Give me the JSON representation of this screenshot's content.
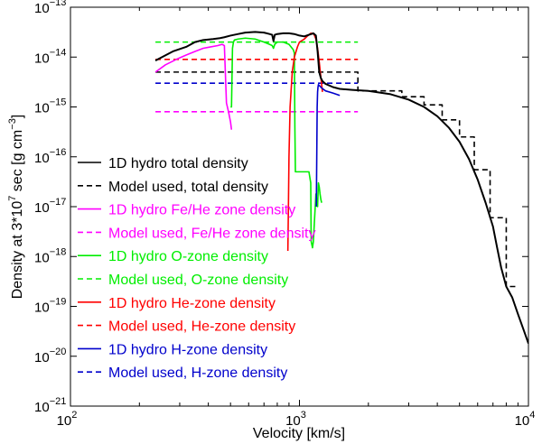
{
  "chart_data": {
    "type": "line",
    "xlabel": "Velocity [km/s]",
    "ylabel_parts": [
      "Density at 3*10",
      "7",
      " sec [g cm",
      "−3",
      "]"
    ],
    "xscale": "log",
    "yscale": "log",
    "xlim": [
      100,
      10000
    ],
    "ylim": [
      1e-21,
      1e-13
    ],
    "x_ticks": [
      {
        "value": 100,
        "base": "10",
        "exp": "2"
      },
      {
        "value": 1000,
        "base": "10",
        "exp": "3"
      },
      {
        "value": 10000,
        "base": "10",
        "exp": "4"
      }
    ],
    "y_ticks": [
      {
        "value": 1e-13,
        "base": "10",
        "exp": "−13"
      },
      {
        "value": 1e-14,
        "base": "10",
        "exp": "−14"
      },
      {
        "value": 1e-15,
        "base": "10",
        "exp": "−15"
      },
      {
        "value": 1e-16,
        "base": "10",
        "exp": "−16"
      },
      {
        "value": 1e-17,
        "base": "10",
        "exp": "−17"
      },
      {
        "value": 1e-18,
        "base": "10",
        "exp": "−18"
      },
      {
        "value": 1e-19,
        "base": "10",
        "exp": "−19"
      },
      {
        "value": 1e-20,
        "base": "10",
        "exp": "−20"
      },
      {
        "value": 1e-21,
        "base": "10",
        "exp": "−21"
      }
    ],
    "legend_position": "left",
    "series": [
      {
        "name": "1D hydro total density",
        "color": "#000000",
        "style": "solid",
        "x": [
          235,
          280,
          320,
          350,
          380,
          420,
          450,
          470,
          500,
          540,
          580,
          640,
          700,
          740,
          760,
          770,
          780,
          800,
          850,
          900,
          950,
          1000,
          1050,
          1100,
          1150,
          1180,
          1200,
          1220,
          1240,
          1260,
          1300,
          1400,
          1500,
          1700,
          2000,
          2500,
          3000,
          3500,
          4000,
          4500,
          5000,
          5500,
          6000,
          6500,
          7000,
          7300,
          7600,
          8000,
          8500,
          9000,
          9500,
          10000
        ],
        "y": [
          8.5e-15,
          1.3e-14,
          1.6e-14,
          2e-14,
          2.2e-14,
          2.3e-14,
          2.4e-14,
          2.5e-14,
          2.7e-14,
          2.9e-14,
          3.1e-14,
          3.2e-14,
          3.1e-14,
          2.9e-14,
          2.8e-14,
          2.1e-14,
          2.8e-14,
          2.9e-14,
          3e-14,
          3e-14,
          2.9e-14,
          2.7e-14,
          2.6e-14,
          2.8e-14,
          3e-14,
          2.7e-14,
          1.3e-14,
          5e-15,
          3.8e-15,
          3.3e-15,
          2.9e-15,
          2.5e-15,
          2.3e-15,
          2.2e-15,
          2.1e-15,
          1.8e-15,
          1.4e-15,
          1e-15,
          6.5e-16,
          3.8e-16,
          2e-16,
          9e-17,
          3.5e-17,
          1.2e-17,
          4e-18,
          1.5e-18,
          6e-19,
          2.5e-19,
          1.5e-19,
          7e-20,
          3.5e-20,
          1.8e-20
        ]
      },
      {
        "name": "Model used, total density",
        "color": "#000000",
        "style": "dashed",
        "x": [
          235,
          1800,
          1800,
          2800,
          2800,
          3500,
          3500,
          4200,
          4200,
          5000,
          5000,
          5800,
          5800,
          6800,
          6800,
          8000,
          8000,
          9000
        ],
        "y": [
          5e-15,
          5e-15,
          2.1e-15,
          2.1e-15,
          1.6e-15,
          1.6e-15,
          1.1e-15,
          1.1e-15,
          5.5e-16,
          5.5e-16,
          2.5e-16,
          2.5e-16,
          5.5e-17,
          5.5e-17,
          6e-18,
          6e-18,
          2.5e-19,
          2.5e-19
        ]
      },
      {
        "name": "1D hydro Fe/He zone density",
        "color": "#ff00ff",
        "style": "solid",
        "x": [
          235,
          260,
          290,
          320,
          350,
          380,
          410,
          440,
          460,
          470,
          480,
          490,
          500,
          505
        ],
        "y": [
          5e-15,
          7e-15,
          9e-15,
          1.1e-14,
          1.3e-14,
          1.5e-14,
          1.6e-14,
          1.7e-14,
          1.8e-14,
          1.7e-14,
          1.2e-15,
          8e-16,
          5e-16,
          3.5e-16
        ]
      },
      {
        "name": "Model used, Fe/He zone density",
        "color": "#ff00ff",
        "style": "dashed",
        "x": [
          235,
          1800
        ],
        "y": [
          8e-16,
          8e-16
        ]
      },
      {
        "name": "1D hydro O-zone density",
        "color": "#00ee00",
        "style": "solid",
        "x": [
          500,
          505,
          510,
          515,
          520,
          540,
          580,
          640,
          700,
          740,
          760,
          770,
          780,
          800,
          850,
          900,
          940,
          950,
          955,
          960,
          1000,
          1050,
          1100,
          1120,
          1125,
          1140,
          1150,
          1180,
          1200,
          1210,
          1220,
          1230,
          1240,
          1250
        ],
        "y": [
          1e-15,
          1e-15,
          1.5e-14,
          2e-14,
          2.2e-14,
          2.3e-14,
          2.4e-14,
          2.3e-14,
          2e-14,
          1.8e-14,
          1.7e-14,
          1.5e-14,
          1.8e-14,
          2e-14,
          2e-14,
          1.8e-14,
          1.4e-14,
          1.2e-14,
          4e-16,
          5e-17,
          5e-17,
          5e-17,
          5e-17,
          3e-17,
          2e-18,
          1.5e-18,
          2e-18,
          1.8e-17,
          1e-17,
          3e-17,
          2.5e-17,
          1.8e-17,
          1.4e-17,
          1.2e-17
        ]
      },
      {
        "name": "Model used, O-zone density",
        "color": "#00ee00",
        "style": "dashed",
        "x": [
          235,
          1800
        ],
        "y": [
          2e-14,
          2e-14
        ]
      },
      {
        "name": "1D hydro He-zone density",
        "color": "#ff0000",
        "style": "solid",
        "x": [
          890,
          895,
          900,
          910,
          930,
          950,
          980,
          1000,
          1050,
          1080,
          1100,
          1120,
          1140,
          1160,
          1180,
          1200,
          1220,
          1240,
          1260
        ],
        "y": [
          1.3e-18,
          1e-17,
          1e-16,
          1e-15,
          5e-15,
          1e-14,
          1.6e-14,
          2e-14,
          2.3e-14,
          2.6e-14,
          2.8e-14,
          3e-14,
          3e-14,
          2.8e-14,
          2.3e-14,
          1.5e-14,
          8e-15,
          4e-15,
          2e-15
        ]
      },
      {
        "name": "Model used, He-zone density",
        "color": "#ff0000",
        "style": "dashed",
        "x": [
          235,
          1800
        ],
        "y": [
          9e-15,
          9e-15
        ]
      },
      {
        "name": "1D hydro H-zone density",
        "color": "#0000cc",
        "style": "solid",
        "x": [
          1185,
          1190,
          1195,
          1200,
          1205,
          1210,
          1220,
          1250,
          1300,
          1400,
          1500
        ],
        "y": [
          1e-17,
          1e-16,
          1e-15,
          2e-15,
          2.5e-15,
          2.8e-15,
          2.7e-15,
          2.4e-15,
          2.1e-15,
          1.9e-15,
          1.7e-15
        ]
      },
      {
        "name": "Model used, H-zone density",
        "color": "#0000cc",
        "style": "dashed",
        "x": [
          235,
          1800
        ],
        "y": [
          3e-15,
          3e-15
        ]
      }
    ]
  }
}
